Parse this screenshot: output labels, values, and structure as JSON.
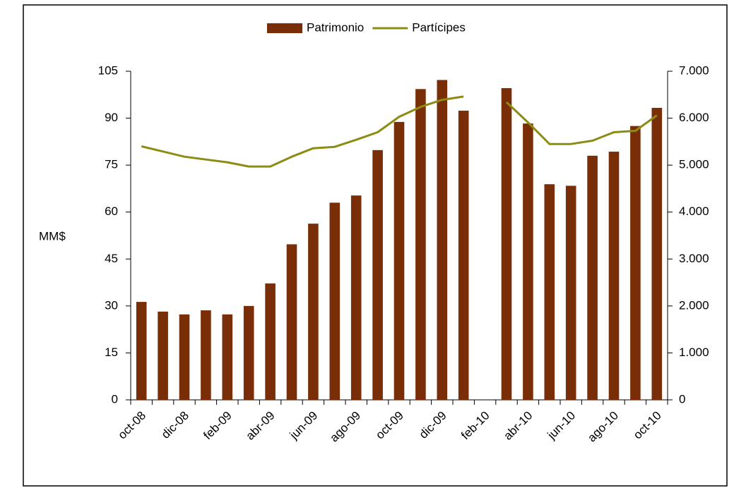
{
  "chart_data": {
    "type": "bar_line",
    "y_label": "MM$",
    "categories": [
      "oct-08",
      null,
      "dic-08",
      null,
      "feb-09",
      null,
      "abr-09",
      null,
      "jun-09",
      null,
      "ago-09",
      null,
      "oct-09",
      null,
      "dic-09",
      null,
      "feb-10",
      null,
      "abr-10",
      null,
      "jun-10",
      null,
      "ago-10",
      null,
      "oct-10"
    ],
    "series": [
      {
        "name": "Patrimonio",
        "type": "bar",
        "color": "#7a2e08",
        "axis": "y",
        "values": [
          31.3,
          28.2,
          27.3,
          28.6,
          27.3,
          30.0,
          37.2,
          49.7,
          56.3,
          63.0,
          65.3,
          79.8,
          88.8,
          99.3,
          102.2,
          92.4,
          null,
          99.6,
          88.3,
          68.9,
          68.4,
          78.0,
          79.3,
          87.5,
          93.3
        ]
      },
      {
        "name": "Partícipes",
        "type": "line",
        "color": "#8c8c14",
        "axis": "y2",
        "values": [
          5400,
          5290,
          5180,
          5120,
          5060,
          4970,
          4970,
          5180,
          5360,
          5390,
          5540,
          5700,
          6030,
          6240,
          6390,
          6460,
          null,
          6340,
          5910,
          5450,
          5450,
          5520,
          5700,
          5730,
          6060
        ]
      }
    ],
    "ylim": [
      0,
      105
    ],
    "yticks": [
      0,
      15,
      30,
      45,
      60,
      75,
      90,
      105
    ],
    "y2lim": [
      0,
      7000
    ],
    "y2ticks": [
      0,
      {
        "value": 1000,
        "label": "1.000"
      },
      {
        "value": 2000,
        "label": "2.000"
      },
      {
        "value": 3000,
        "label": "3.000"
      },
      {
        "value": 4000,
        "label": "4.000"
      },
      {
        "value": 5000,
        "label": "5.000"
      },
      {
        "value": 6000,
        "label": "6.000"
      },
      {
        "value": 7000,
        "label": "7.000"
      }
    ],
    "legend": "top"
  }
}
